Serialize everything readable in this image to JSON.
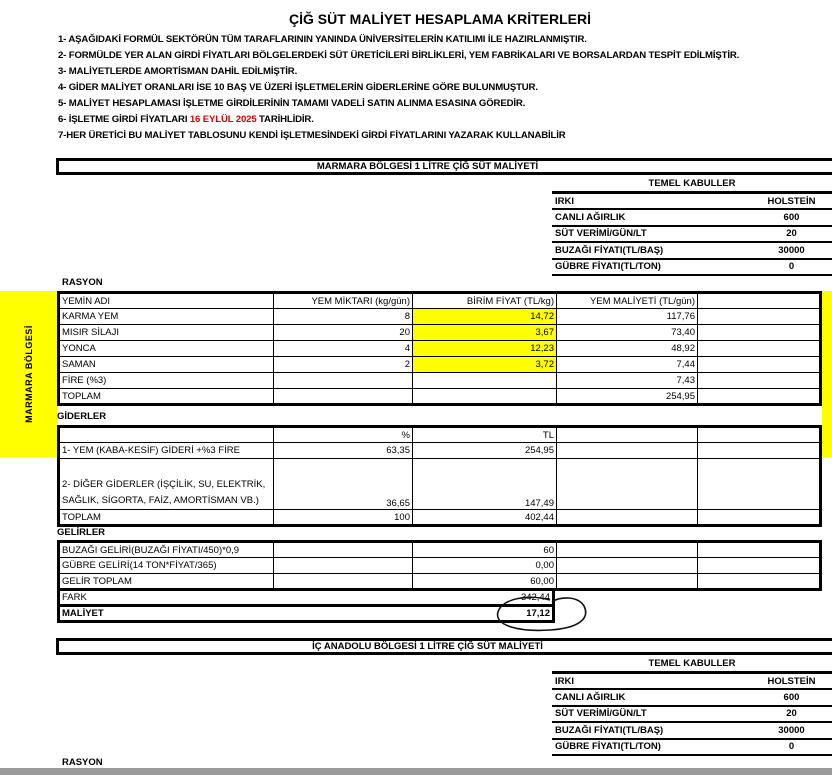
{
  "title": "ÇİĞ SÜT MALİYET HESAPLAMA KRİTERLERİ",
  "criteria": [
    "1- AŞAĞIDAKİ FORMÜL SEKTÖRÜN TÜM TARAFLARININ YANINDA ÜNİVERSİTELERİN  KATILIMI İLE HAZIRLANMIŞTIR.",
    "2- FORMÜLDE YER ALAN GİRDİ FİYATLARI  BÖLGELERDEKİ SÜT ÜRETİCİLERİ BİRLİKLERİ, YEM FABRİKALARI VE BORSALARDAN TESPİT EDİLMİŞTİR.",
    "3- MALİYETLERDE AMORTİSMAN DAHİL EDİLMİŞTİR.",
    "4- GİDER MALİYET ORANLARI İSE 10 BAŞ VE ÜZERİ İŞLETMELERİN GİDERLERİNE GÖRE BULUNMUŞTUR.",
    "5- MALİYET HESAPLAMASI İŞLETME GİRDİLERİNİN  TAMAMI VADELİ SATIN ALINMA ESASINA GÖREDİR.",
    "7-HER  ÜRETİCİ BU MALİYET TABLOSUNU   KENDİ İŞLETMESİNDEKİ GİRDİ FİYATLARINI YAZARAK KULLANABİLİR"
  ],
  "criterion6": {
    "before": "6- İŞLETME GİRDİ FİYATLARI ",
    "date": "16 EYLÜL 2025",
    "after": " TARİHLİDİR."
  },
  "colors": {
    "highlight": "#ffff00",
    "date_red": "#e00000"
  },
  "marmara": {
    "header": "MARMARA BÖLGESİ 1 LİTRE  ÇİĞ SÜT MALİYETİ",
    "side_label": "MARMARA BÖLGESİ",
    "temel": {
      "title": "TEMEL KABULLER",
      "rows": [
        [
          "IRKI",
          "HOLSTEİN"
        ],
        [
          "CANLI AĞIRLIK",
          "600"
        ],
        [
          "SÜT VERİMİ/GÜN/LT",
          "20"
        ],
        [
          "BUZAĞI FİYATI(TL/BAŞ)",
          "30000"
        ],
        [
          "GÜBRE FİYATI(TL/TON)",
          "0"
        ]
      ]
    },
    "rasyon_label": "RASYON",
    "rasyon_header": [
      "YEMİN ADI",
      "YEM MİKTARI (kg/gün)",
      "BİRİM FİYAT (TL/kg)",
      "YEM MALİYETİ (TL/gün)"
    ],
    "rasyon_rows": [
      [
        "KARMA YEM",
        "8",
        "14,72",
        "117,76"
      ],
      [
        "MISIR SİLAJI",
        "20",
        "3,67",
        "73,40"
      ],
      [
        "YONCA",
        "4",
        "12,23",
        "48,92"
      ],
      [
        "SAMAN",
        "2",
        "3,72",
        "7,44"
      ],
      [
        "FİRE (%3)",
        "",
        "",
        "7,43"
      ],
      [
        "TOPLAM",
        "",
        "",
        "254,95"
      ]
    ],
    "giderler_label": "GİDERLER",
    "giderler_header": [
      "",
      "%",
      "TL"
    ],
    "giderler_rows": [
      [
        "1- YEM (KABA-KESİF) GİDERİ +%3 FİRE",
        "63,35",
        "254,95"
      ],
      [
        "2- DİĞER GİDERLER (İŞÇİLİK, SU, ELEKTRİK,",
        "SAĞLIK, SİGORTA, FAİZ, AMORTİSMAN VB.)",
        "36,65",
        "147,49"
      ],
      [
        "TOPLAM",
        "100",
        "402,44"
      ]
    ],
    "gelirler_label": "GELİRLER",
    "gelirler_rows": [
      [
        "BUZAĞI GELİRİ(BUZAĞI FİYATI/450)*0,9",
        "60"
      ],
      [
        "GÜBRE GELİRİ(14 TON*FİYAT/365)",
        "0,00"
      ],
      [
        "GELİR TOPLAM",
        "60,00"
      ]
    ],
    "fark": [
      "FARK",
      "342,44"
    ],
    "maliyet": [
      "MALİYET",
      "17,12"
    ]
  },
  "icanadolu": {
    "header": "İÇ ANADOLU BÖLGESİ 1 LİTRE  ÇİĞ SÜT MALİYETİ",
    "temel": {
      "title": "TEMEL KABULLER",
      "rows": [
        [
          "IRKI",
          "HOLSTEİN"
        ],
        [
          "CANLI AĞIRLIK",
          "600"
        ],
        [
          "SÜT VERİMİ/GÜN/LT",
          "20"
        ],
        [
          "BUZAĞI FİYATI(TL/BAŞ)",
          "30000"
        ],
        [
          "GÜBRE FİYATI(TL/TON)",
          "0"
        ]
      ]
    },
    "rasyon_label": "RASYON"
  }
}
